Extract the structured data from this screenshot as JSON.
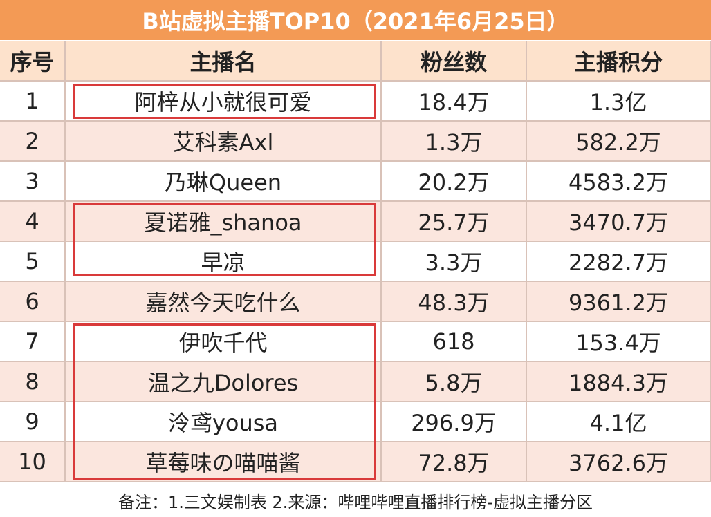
{
  "header": {
    "title": "B站虚拟主播TOP10（2021年6月25日）"
  },
  "table": {
    "columns": [
      "序号",
      "主播名",
      "粉丝数",
      "主播积分"
    ],
    "rows": [
      [
        "1",
        "阿梓从小就很可爱",
        "18.4万",
        "1.3亿"
      ],
      [
        "2",
        "艾科素Axl",
        "1.3万",
        "582.2万"
      ],
      [
        "3",
        "乃琳Queen",
        "20.2万",
        "4583.2万"
      ],
      [
        "4",
        "夏诺雅_shanoa",
        "25.7万",
        "3470.7万"
      ],
      [
        "5",
        "早凉",
        "3.3万",
        "2282.7万"
      ],
      [
        "6",
        "嘉然今天吃什么",
        "48.3万",
        "9361.2万"
      ],
      [
        "7",
        "伊吹千代",
        "618",
        "153.4万"
      ],
      [
        "8",
        "温之九Dolores",
        "5.8万",
        "1884.3万"
      ],
      [
        "9",
        "泠鸢yousa",
        "296.9万",
        "4.1亿"
      ],
      [
        "10",
        "草莓味の喵喵酱",
        "72.8万",
        "3762.6万"
      ]
    ]
  },
  "footer": {
    "note": "备注：1.三文娱制表 2.来源：哔哩哔哩直播排行榜-虚拟主播分区"
  }
}
